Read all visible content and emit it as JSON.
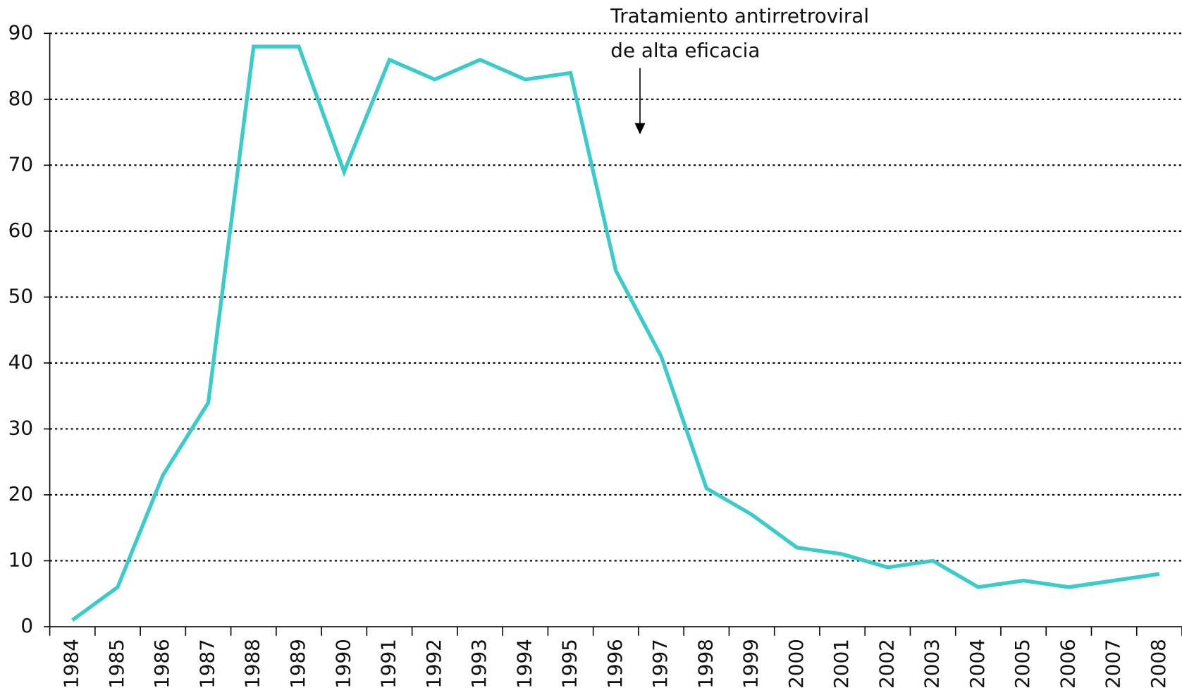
{
  "chart_data": {
    "type": "line",
    "annotation": [
      "Tratamiento antirretroviral",
      "de alta eficacia"
    ],
    "categories": [
      "1984",
      "1985",
      "1986",
      "1987",
      "1988",
      "1989",
      "1990",
      "1991",
      "1992",
      "1993",
      "1994",
      "1995",
      "1996",
      "1997",
      "1998",
      "1999",
      "2000",
      "2001",
      "2002",
      "2003",
      "2004",
      "2005",
      "2006",
      "2007",
      "2008"
    ],
    "series": [
      {
        "color": "#3ccbcb",
        "values": [
          1,
          6,
          23,
          34,
          88,
          88,
          69,
          86,
          83,
          86,
          83,
          84,
          54,
          41,
          21,
          17,
          12,
          11,
          9,
          10,
          6,
          7,
          6,
          7,
          8
        ]
      }
    ],
    "ylim": [
      0,
      90
    ],
    "yticks": [
      0,
      10,
      20,
      30,
      40,
      50,
      60,
      70,
      80,
      90
    ],
    "grid": true
  }
}
